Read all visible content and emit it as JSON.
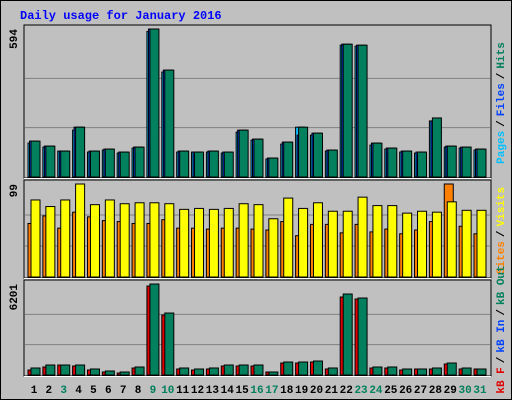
{
  "title": "Daily usage for January 2016",
  "legend_separator": "/",
  "chart_data": [
    {
      "type": "bar",
      "ylim": [
        0,
        594
      ],
      "yticks": [
        594
      ],
      "legend_reversed": true,
      "series": [
        {
          "name": "Hits",
          "color": "#00805c",
          "values": [
            144,
            124,
            104,
            200,
            104,
            112,
            100,
            120,
            594,
            429,
            104,
            100,
            104,
            100,
            188,
            152,
            76,
            140,
            200,
            176,
            108,
            533,
            529,
            136,
            116,
            104,
            100,
            237,
            124,
            120,
            112
          ]
        },
        {
          "name": "Files",
          "color": "#0040ff",
          "values": [
            144,
            124,
            104,
            200,
            104,
            112,
            100,
            120,
            594,
            429,
            104,
            100,
            104,
            100,
            188,
            152,
            76,
            140,
            168,
            176,
            108,
            533,
            529,
            136,
            116,
            104,
            100,
            225,
            124,
            120,
            112
          ]
        },
        {
          "name": "Pages",
          "color": "#00c0ff",
          "values": [
            136,
            120,
            104,
            188,
            100,
            108,
            96,
            116,
            584,
            421,
            100,
            100,
            100,
            96,
            180,
            148,
            72,
            132,
            200,
            168,
            104,
            529,
            525,
            128,
            112,
            100,
            96,
            225,
            120,
            116,
            108
          ]
        }
      ]
    },
    {
      "type": "bar",
      "ylim": [
        0,
        99
      ],
      "yticks": [
        99
      ],
      "legend_reversed": true,
      "series": [
        {
          "name": "Visits",
          "color": "#ffff00",
          "values": [
            82,
            75,
            82,
            99,
            77,
            82,
            78,
            79,
            79,
            78,
            72,
            73,
            72,
            73,
            78,
            77,
            62,
            84,
            73,
            79,
            70,
            70,
            85,
            76,
            76,
            68,
            70,
            69,
            80,
            71,
            71
          ]
        },
        {
          "name": "Sites",
          "color": "#ff8000",
          "values": [
            57,
            65,
            52,
            69,
            64,
            60,
            59,
            57,
            57,
            61,
            52,
            52,
            51,
            52,
            52,
            51,
            50,
            59,
            44,
            56,
            56,
            47,
            56,
            48,
            51,
            46,
            50,
            59,
            99,
            54,
            46
          ]
        }
      ]
    },
    {
      "type": "bar",
      "ylim": [
        0,
        6201
      ],
      "yticks": [
        6201
      ],
      "legend_reversed": false,
      "categories": [
        "1",
        "2",
        "3",
        "4",
        "5",
        "6",
        "7",
        "8",
        "9",
        "10",
        "11",
        "12",
        "13",
        "14",
        "15",
        "16",
        "17",
        "18",
        "19",
        "20",
        "21",
        "22",
        "23",
        "24",
        "25",
        "26",
        "27",
        "28",
        "29",
        "30",
        "31"
      ],
      "category_colors": [
        "#000000",
        "#000000",
        "#00805c",
        "#000000",
        "#000000",
        "#000000",
        "#000000",
        "#000000",
        "#00805c",
        "#00805c",
        "#000000",
        "#000000",
        "#000000",
        "#000000",
        "#000000",
        "#00805c",
        "#00805c",
        "#000000",
        "#000000",
        "#000000",
        "#000000",
        "#000000",
        "#00805c",
        "#00805c",
        "#000000",
        "#000000",
        "#000000",
        "#000000",
        "#000000",
        "#00805c",
        "#00805c"
      ],
      "series": [
        {
          "name": "kB F",
          "color": "#e00000",
          "values": [
            341,
            545,
            681,
            613,
            341,
            204,
            136,
            477,
            6064,
            4087,
            409,
            341,
            409,
            613,
            613,
            613,
            204,
            817,
            817,
            885,
            409,
            5315,
            5179,
            477,
            477,
            341,
            409,
            409,
            749,
            409,
            409
          ]
        },
        {
          "name": "kB In",
          "color": "#0040ff",
          "values": [
            0,
            0,
            0,
            0,
            0,
            0,
            0,
            0,
            0,
            0,
            0,
            0,
            0,
            0,
            0,
            0,
            0,
            0,
            0,
            0,
            0,
            0,
            0,
            0,
            0,
            0,
            0,
            0,
            0,
            0,
            0
          ]
        },
        {
          "name": "kB Out",
          "color": "#00805c",
          "values": [
            477,
            681,
            681,
            681,
            409,
            272,
            204,
            545,
            6201,
            4223,
            477,
            409,
            477,
            681,
            681,
            681,
            204,
            885,
            885,
            953,
            477,
            5519,
            5247,
            545,
            545,
            409,
            409,
            477,
            817,
            477,
            409
          ]
        }
      ]
    }
  ]
}
